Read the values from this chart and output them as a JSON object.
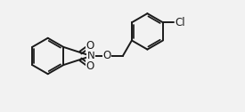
{
  "bg_color": "#f2f2f2",
  "line_color": "#1a1a1a",
  "line_width": 1.4,
  "text_color": "#1a1a1a",
  "font_size": 8.5,
  "figsize": [
    2.75,
    1.26
  ],
  "dpi": 100,
  "xlim": [
    0,
    11
  ],
  "ylim": [
    0,
    5
  ]
}
